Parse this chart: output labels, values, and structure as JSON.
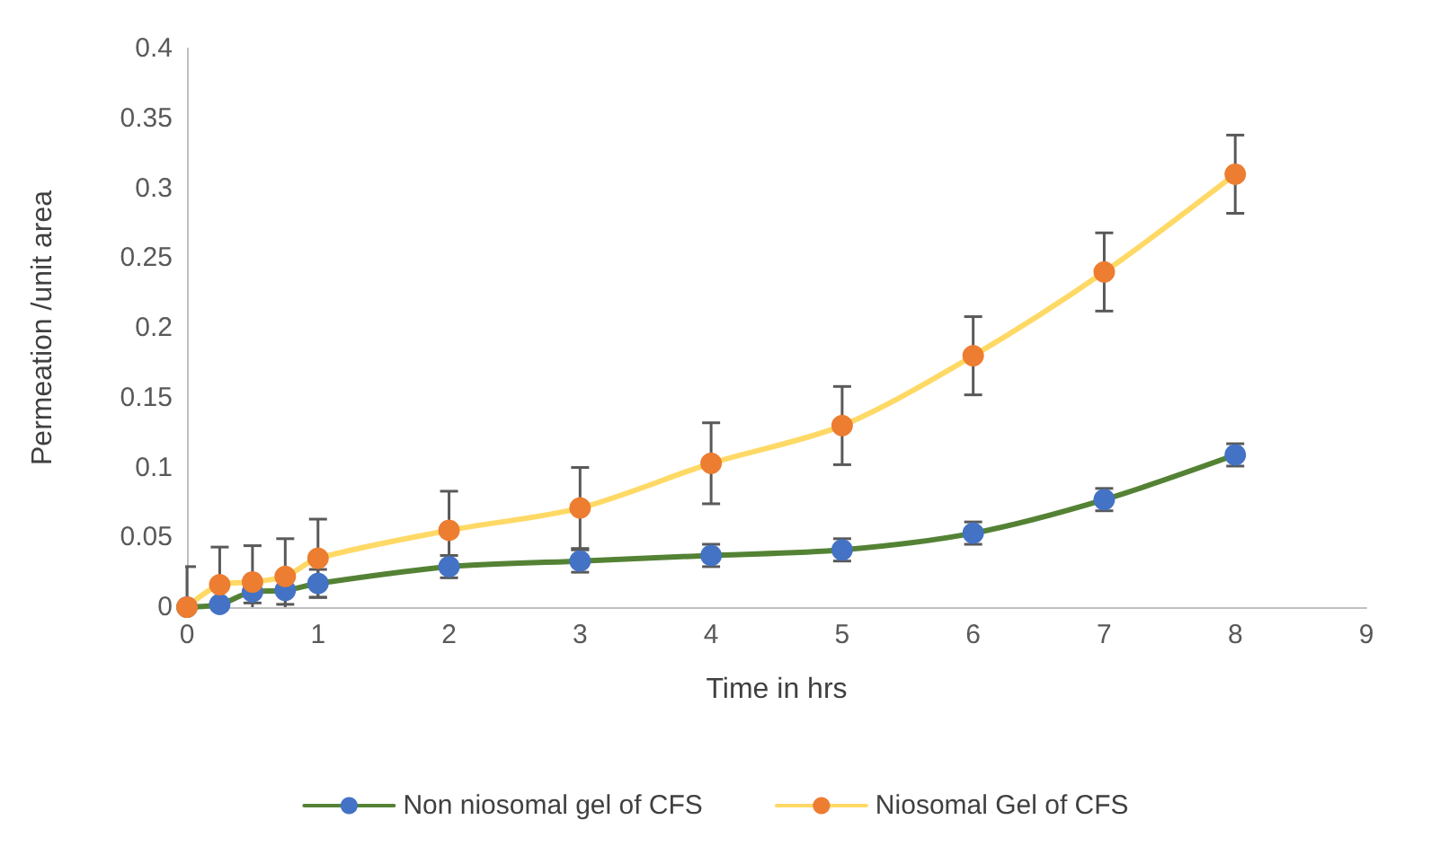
{
  "chart_data": {
    "type": "line",
    "xlabel": "Time in hrs",
    "ylabel": "Permeation /unit area",
    "xlim": [
      0,
      9
    ],
    "xticks": [
      0,
      1,
      2,
      3,
      4,
      5,
      6,
      7,
      8,
      9
    ],
    "ylim": [
      0,
      0.4
    ],
    "yticks": [
      0,
      0.05,
      0.1,
      0.15,
      0.2,
      0.25,
      0.3,
      0.35,
      0.4
    ],
    "grid": false,
    "legend": "bottom",
    "marker": "circle",
    "x": [
      0,
      0.25,
      0.5,
      0.75,
      1,
      2,
      3,
      4,
      5,
      6,
      7,
      8
    ],
    "series": [
      {
        "name": "Non niosomal gel of CFS",
        "color": "#548235",
        "colors": [
          "#4472c4",
          "#4472c4",
          "#4472c4",
          "#4472c4",
          "#4472c4",
          "#4472c4",
          "#4472c4",
          "#4472c4",
          "#4472c4",
          "#4472c4",
          "#4472c4",
          "#4472c4"
        ],
        "values": [
          0,
          0.002,
          0.011,
          0.012,
          0.017,
          0.029,
          0.033,
          0.037,
          0.041,
          0.053,
          0.077,
          0.109
        ],
        "errors": [
          null,
          null,
          0.008,
          0.01,
          0.01,
          0.008,
          0.008,
          0.008,
          0.008,
          0.008,
          0.008,
          0.008
        ]
      },
      {
        "name": "Niosomal Gel of CFS",
        "color": "#ffd966",
        "colors": [
          "#ed7d31",
          "#ed7d31",
          "#ed7d31",
          "#ed7d31",
          "#ed7d31",
          "#ed7d31",
          "#ed7d31",
          "#ed7d31",
          "#ed7d31",
          "#ed7d31",
          "#ed7d31",
          "#ed7d31"
        ],
        "values": [
          0,
          0.016,
          0.018,
          0.022,
          0.035,
          0.055,
          0.071,
          0.103,
          0.13,
          0.18,
          0.24,
          0.31
        ],
        "errors": [
          0.029,
          0.027,
          0.026,
          0.027,
          0.028,
          0.028,
          0.029,
          0.029,
          0.028,
          0.028,
          0.028,
          0.028
        ]
      }
    ]
  }
}
